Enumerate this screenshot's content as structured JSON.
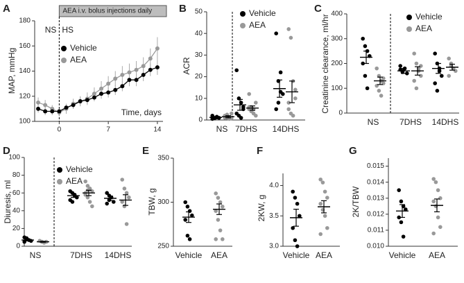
{
  "chart_data": [
    {
      "type": "line",
      "label": "A",
      "ylabel": "MAP, mmHg",
      "xlabel": "Time, days",
      "annotation": "AEA i.v. bolus injections daily",
      "phase_labels": [
        "NS",
        "HS"
      ],
      "x": [
        -3,
        -2,
        -1,
        0,
        1,
        2,
        3,
        4,
        5,
        6,
        7,
        8,
        9,
        10,
        11,
        12,
        13,
        14
      ],
      "xlim": [
        -3.5,
        14.8
      ],
      "xticks": [
        0,
        7,
        14
      ],
      "ylim": [
        100,
        180
      ],
      "yticks": [
        100,
        120,
        140,
        160,
        180
      ],
      "series": [
        {
          "name": "Vehicle",
          "color": "#000000",
          "values": [
            110,
            108,
            108,
            108,
            111,
            113,
            116,
            117,
            119,
            122,
            123,
            125,
            128,
            133,
            133,
            137,
            141,
            143
          ],
          "errors": [
            3,
            3,
            3,
            2,
            3,
            3,
            3,
            3,
            3,
            4,
            4,
            4,
            4,
            5,
            5,
            5,
            5,
            6
          ]
        },
        {
          "name": "AEA",
          "color": "#999999",
          "values": [
            115,
            113,
            110,
            107,
            110,
            114,
            116,
            118,
            122,
            126,
            130,
            134,
            137,
            139,
            141,
            144,
            150,
            158
          ],
          "errors": [
            4,
            4,
            3,
            3,
            4,
            4,
            4,
            5,
            5,
            6,
            6,
            6,
            7,
            7,
            7,
            7,
            8,
            9
          ]
        }
      ]
    },
    {
      "type": "dot",
      "label": "B",
      "ylabel": "ACR",
      "categories": [
        "NS",
        "7DHS",
        "14DHS"
      ],
      "ylim": [
        0,
        50
      ],
      "yticks": [
        0,
        10,
        20,
        30,
        40,
        50
      ],
      "series": [
        {
          "name": "Vehicle",
          "color": "#000000",
          "values": [
            [
              0.5,
              1,
              1.5,
              1,
              2,
              0.8,
              1.2
            ],
            [
              23,
              10,
              8,
              5,
              3,
              2,
              1,
              6
            ],
            [
              40,
              18,
              13,
              12,
              5,
              8,
              22
            ]
          ],
          "mean": [
            1.2,
            7,
            14.5
          ],
          "sem": [
            0.3,
            2.5,
            4
          ]
        },
        {
          "name": "AEA",
          "color": "#999999",
          "values": [
            [
              1,
              2,
              0.5,
              3,
              1.5,
              2.5,
              1,
              0.8,
              2,
              1
            ],
            [
              5,
              6,
              3,
              8,
              12,
              4,
              5,
              2,
              6,
              5
            ],
            [
              42,
              38,
              18,
              10,
              5,
              3,
              2,
              14,
              8
            ]
          ],
          "mean": [
            1.5,
            5.5,
            13
          ],
          "sem": [
            0.5,
            1,
            5
          ]
        }
      ]
    },
    {
      "type": "dot",
      "label": "C",
      "ylabel": "Creatinine clearance, ml/hr",
      "categories": [
        "NS",
        "7DHS",
        "14DHS"
      ],
      "ylim": [
        0,
        400
      ],
      "yticks": [
        0,
        100,
        200,
        300,
        400
      ],
      "series": [
        {
          "name": "Vehicle",
          "color": "#000000",
          "values": [
            [
              300,
              270,
              250,
              230,
              200,
              150,
              100
            ],
            [
              190,
              170,
              180,
              160,
              175,
              165
            ],
            [
              240,
              200,
              170,
              150,
              120,
              90,
              180
            ]
          ],
          "mean": [
            225,
            170,
            180
          ],
          "sem": [
            25,
            10,
            20
          ]
        },
        {
          "name": "AEA",
          "color": "#999999",
          "values": [
            [
              180,
              150,
              130,
              120,
              110,
              90,
              70,
              140
            ],
            [
              240,
              200,
              180,
              150,
              130,
              100,
              170,
              190
            ],
            [
              220,
              190,
              180,
              170,
              150,
              200
            ]
          ],
          "mean": [
            130,
            170,
            185
          ],
          "sem": [
            15,
            17,
            12
          ]
        }
      ]
    },
    {
      "type": "dot",
      "label": "D",
      "ylabel": "Diuresis, ml",
      "categories": [
        "NS",
        "7DHS",
        "14DHS"
      ],
      "ylim": [
        0,
        100
      ],
      "yticks": [
        0,
        20,
        40,
        60,
        80,
        100
      ],
      "series": [
        {
          "name": "Vehicle",
          "color": "#000000",
          "values": [
            [
              10,
              8,
              7,
              6,
              5,
              9
            ],
            [
              62,
              60,
              58,
              55,
              52,
              50,
              57
            ],
            [
              60,
              57,
              55,
              50,
              48,
              52
            ]
          ],
          "mean": [
            7,
            57,
            54
          ],
          "sem": [
            1,
            2,
            2.5
          ]
        },
        {
          "name": "AEA",
          "color": "#999999",
          "values": [
            [
              6,
              5,
              4,
              5,
              6,
              5,
              4
            ],
            [
              73,
              68,
              65,
              62,
              60,
              55,
              50,
              45,
              58,
              63
            ],
            [
              75,
              65,
              60,
              55,
              50,
              45,
              25
            ]
          ],
          "mean": [
            5,
            60,
            52
          ],
          "sem": [
            0.5,
            3,
            6
          ]
        }
      ]
    },
    {
      "type": "dot",
      "label": "E",
      "ylabel": "TBW, g",
      "ylim": [
        250,
        350
      ],
      "yticks": [
        250,
        300,
        350
      ],
      "series": [
        {
          "name": "Vehicle",
          "color": "#000000",
          "values": [
            300,
            295,
            290,
            285,
            280,
            262,
            258
          ],
          "mean": 283,
          "sem": 6
        },
        {
          "name": "AEA",
          "color": "#999999",
          "values": [
            310,
            305,
            300,
            295,
            290,
            280,
            268,
            258,
            258
          ],
          "mean": 292,
          "sem": 6
        }
      ]
    },
    {
      "type": "dot",
      "label": "F",
      "ylabel": "2KW, g",
      "ylim": [
        3.0,
        4.2
      ],
      "yticks": [
        {
          "value": 3.0,
          "label": "3.0"
        },
        3.5,
        {
          "value": 4.0,
          "label": "4.0"
        }
      ],
      "series": [
        {
          "name": "Vehicle",
          "color": "#000000",
          "values": [
            3.9,
            3.8,
            3.7,
            3.5,
            3.3,
            3.1,
            3.0
          ],
          "mean": 3.47,
          "sem": 0.14
        },
        {
          "name": "AEA",
          "color": "#999999",
          "values": [
            4.1,
            4.05,
            3.9,
            3.8,
            3.7,
            3.6,
            3.5,
            3.3,
            3.2
          ],
          "mean": 3.65,
          "sem": 0.1
        }
      ]
    },
    {
      "type": "dot",
      "label": "G",
      "ylabel": "2K/TBW",
      "ylim": [
        0.01,
        0.0155
      ],
      "yticks": [
        {
          "value": 0.01,
          "label": "0.010"
        },
        0.011,
        0.012,
        0.013,
        0.014,
        0.015
      ],
      "series": [
        {
          "name": "Vehicle",
          "color": "#000000",
          "values": [
            0.0135,
            0.0128,
            0.0125,
            0.0123,
            0.0118,
            0.0115,
            0.0106
          ],
          "mean": 0.0122,
          "sem": 0.0004
        },
        {
          "name": "AEA",
          "color": "#999999",
          "values": [
            0.0142,
            0.014,
            0.0135,
            0.013,
            0.0128,
            0.0125,
            0.0118,
            0.0112,
            0.0108
          ],
          "mean": 0.01255,
          "sem": 0.0004
        }
      ]
    }
  ]
}
